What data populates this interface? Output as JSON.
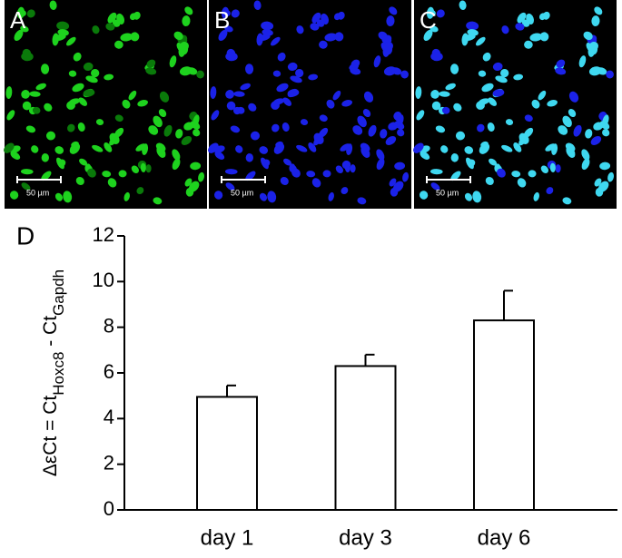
{
  "panels": [
    {
      "label": "A",
      "scale_bar": "50 µm"
    },
    {
      "label": "B",
      "scale_bar": "50 µm"
    },
    {
      "label": "C",
      "scale_bar": "50 µm"
    }
  ],
  "chart_data": {
    "type": "bar",
    "panel_label": "D",
    "ylabel": [
      "ΔεCt = Ct",
      "Hoxc8",
      " - Ct",
      "Gapdh"
    ],
    "categories": [
      "day 1",
      "day 3",
      "day 6"
    ],
    "values": [
      4.95,
      6.3,
      8.3
    ],
    "error": [
      0.5,
      0.5,
      1.3
    ],
    "color": "#ffffff",
    "ylim": [
      0,
      12
    ],
    "yticks": [
      0,
      2,
      4,
      6,
      8,
      10,
      12
    ],
    "grid": false
  }
}
